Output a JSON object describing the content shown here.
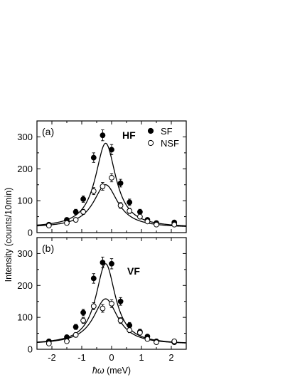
{
  "chart_data": {
    "type": "scatter",
    "x_label_symbol": "ħω",
    "x_label_unit": " (meV)",
    "y_label": "Intensity (counts/10min)",
    "xlim": [
      -2.5,
      2.5
    ],
    "x_ticks": [
      -2,
      -1,
      0,
      1,
      2
    ],
    "x_tick_labels": [
      "-2",
      "-1",
      "0",
      "1",
      "2"
    ],
    "legend": {
      "placement": "top-right",
      "entries": [
        {
          "label": "SF",
          "marker": "filled-circle"
        },
        {
          "label": "NSF",
          "marker": "open-circle"
        }
      ]
    },
    "panels": [
      {
        "label": "(a)",
        "configuration": "HF",
        "ylim": [
          0,
          350
        ],
        "y_ticks": [
          0,
          100,
          200,
          300
        ],
        "y_tick_labels": [
          "0",
          "100",
          "200",
          "300"
        ],
        "series": [
          {
            "name": "SF",
            "marker": "filled-circle",
            "x": [
              -2.1,
              -1.5,
              -1.2,
              -0.95,
              -0.6,
              -0.3,
              0.0,
              0.3,
              0.6,
              0.95,
              1.2,
              1.5,
              2.1
            ],
            "y": [
              25,
              40,
              65,
              105,
              235,
              305,
              260,
              155,
              95,
              65,
              40,
              30,
              32
            ],
            "yerr": [
              5,
              6,
              8,
              10,
              15,
              17,
              16,
              12,
              10,
              8,
              6,
              5,
              5
            ]
          },
          {
            "name": "NSF",
            "marker": "open-circle",
            "x": [
              -2.1,
              -1.5,
              -1.2,
              -0.95,
              -0.6,
              -0.3,
              0.0,
              0.3,
              0.6,
              0.95,
              1.2,
              1.5,
              2.1
            ],
            "y": [
              22,
              30,
              40,
              65,
              130,
              145,
              172,
              85,
              68,
              50,
              35,
              25,
              25
            ],
            "yerr": [
              5,
              5,
              6,
              8,
              11,
              12,
              13,
              9,
              8,
              7,
              6,
              5,
              5
            ]
          }
        ],
        "fits": [
          {
            "for": "SF",
            "center": -0.2,
            "amplitude": 265,
            "gamma": 0.42,
            "background": 15
          },
          {
            "for": "NSF",
            "center": -0.2,
            "amplitude": 135,
            "gamma": 0.5,
            "background": 15
          }
        ]
      },
      {
        "label": "(b)",
        "configuration": "VF",
        "ylim": [
          0,
          350
        ],
        "y_ticks": [
          0,
          100,
          200,
          300
        ],
        "y_tick_labels": [
          "0",
          "100",
          "200",
          "300"
        ],
        "series": [
          {
            "name": "SF",
            "marker": "filled-circle",
            "x": [
              -2.1,
              -1.5,
              -1.2,
              -0.95,
              -0.6,
              -0.3,
              0.0,
              0.3,
              0.6,
              0.95,
              1.2,
              1.5,
              2.1
            ],
            "y": [
              25,
              38,
              70,
              115,
              222,
              272,
              268,
              150,
              75,
              55,
              40,
              25,
              22
            ],
            "yerr": [
              5,
              6,
              8,
              10,
              15,
              17,
              16,
              12,
              9,
              8,
              6,
              5,
              5
            ]
          },
          {
            "name": "NSF",
            "marker": "open-circle",
            "x": [
              -2.1,
              -1.5,
              -1.2,
              -0.95,
              -0.6,
              -0.3,
              0.0,
              0.3,
              0.6,
              0.95,
              1.2,
              1.5,
              2.1
            ],
            "y": [
              18,
              25,
              45,
              90,
              135,
              128,
              143,
              90,
              60,
              52,
              32,
              22,
              25
            ],
            "yerr": [
              5,
              5,
              7,
              9,
              11,
              12,
              12,
              9,
              8,
              7,
              6,
              5,
              5
            ]
          }
        ],
        "fits": [
          {
            "for": "SF",
            "center": -0.2,
            "amplitude": 253,
            "gamma": 0.4,
            "background": 15
          },
          {
            "for": "NSF",
            "center": -0.2,
            "amplitude": 143,
            "gamma": 0.5,
            "background": 15
          }
        ]
      }
    ]
  }
}
